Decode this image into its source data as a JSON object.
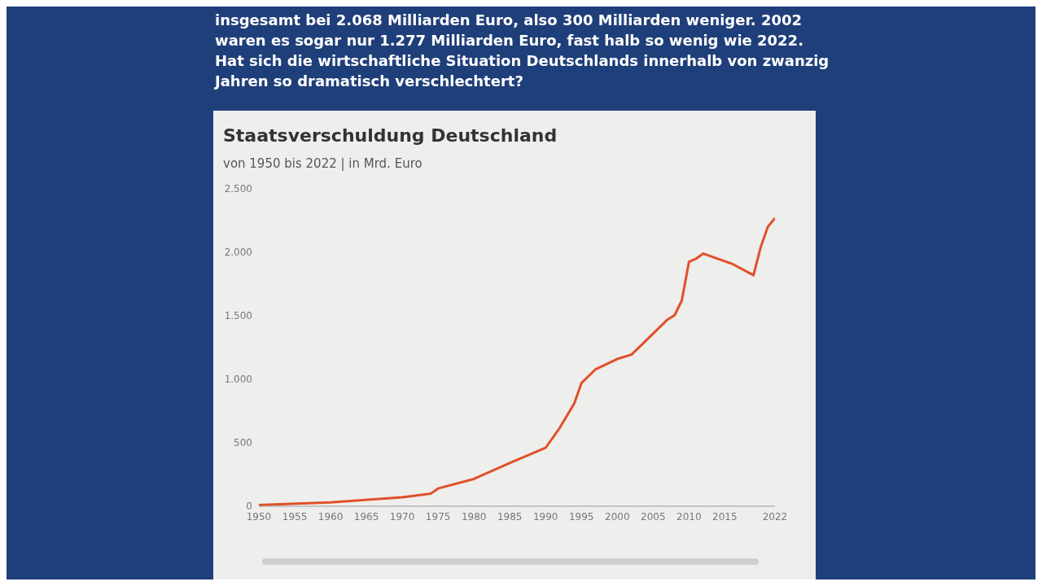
{
  "chart_data": {
    "type": "line",
    "title": "Staatsverschuldung Deutschland",
    "subtitle": "von 1950 bis 2022 | in Mrd. Euro",
    "annotations": [
      "insgesamt bei 2.068 Milliarden Euro, also 300 Milliarden weniger. 2002 waren es sogar nur 1.277 Milliarden Euro, fast halb so wenig wie 2022. Hat sich die wirtschaftliche Situation Deutschlands innerhalb von zwanzig Jahren so dramatisch verschlechtert?"
    ],
    "x": [
      1950,
      1960,
      1970,
      1974,
      1975,
      1980,
      1985,
      1990,
      1992,
      1994,
      1995,
      1997,
      2000,
      2002,
      2005,
      2007,
      2008,
      2009,
      2010,
      2011,
      2012,
      2014,
      2016,
      2018,
      2019,
      2020,
      2021,
      2022
    ],
    "series": [
      {
        "color": "#e0502a",
        "values": [
          10,
          30,
          70,
          100,
          140,
          215,
          340,
          460,
          620,
          810,
          970,
          1080,
          1160,
          1195,
          1360,
          1470,
          1505,
          1620,
          1925,
          1950,
          1990,
          1950,
          1910,
          1850,
          1820,
          2040,
          2200,
          2270
        ]
      }
    ],
    "xlim": [
      1950,
      2022
    ],
    "xticks": [
      1950,
      1955,
      1960,
      1965,
      1970,
      1975,
      1980,
      1985,
      1990,
      1995,
      2000,
      2005,
      2010,
      2015,
      2022
    ],
    "ylim": [
      0,
      2500
    ],
    "yticks": [
      0,
      {
        "value": 500,
        "label": "500"
      },
      {
        "value": 1000,
        "label": "1.000"
      },
      {
        "value": 1500,
        "label": "1.500"
      },
      {
        "value": 2000,
        "label": "2.000"
      },
      {
        "value": 2500,
        "label": "2.500"
      }
    ],
    "grid": false,
    "legend": false,
    "marker": "none",
    "line_style": "solid"
  }
}
